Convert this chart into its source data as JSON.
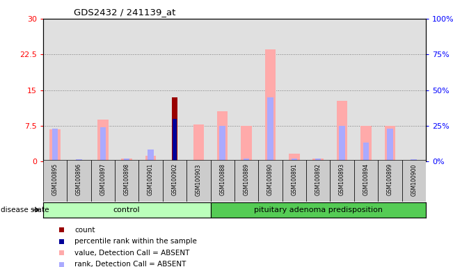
{
  "title": "GDS2432 / 241139_at",
  "samples": [
    "GSM100895",
    "GSM100896",
    "GSM100897",
    "GSM100898",
    "GSM100901",
    "GSM100902",
    "GSM100903",
    "GSM100888",
    "GSM100889",
    "GSM100890",
    "GSM100891",
    "GSM100892",
    "GSM100893",
    "GSM100894",
    "GSM100899",
    "GSM100900"
  ],
  "group_labels": [
    "control",
    "pituitary adenoma predisposition"
  ],
  "group_sizes": [
    7,
    9
  ],
  "count_values": [
    0,
    0,
    0,
    0,
    0,
    13.5,
    0,
    0,
    0,
    0,
    0,
    0,
    0,
    0,
    0,
    0
  ],
  "percentile_values": [
    0,
    0,
    0,
    0,
    0,
    30.0,
    0,
    0,
    0,
    0,
    0,
    0,
    0,
    0,
    0,
    0
  ],
  "value_absent": [
    6.8,
    0,
    8.8,
    0.6,
    1.2,
    0,
    7.8,
    10.5,
    7.5,
    23.5,
    1.6,
    0.7,
    12.8,
    7.5,
    7.5,
    0
  ],
  "rank_absent_pct": [
    23,
    1.5,
    24,
    2.0,
    8.5,
    0,
    0,
    25,
    2.0,
    45,
    2.0,
    2.0,
    25,
    13.5,
    23,
    1.5
  ],
  "ylim_left": [
    0,
    30
  ],
  "ylim_right": [
    0,
    100
  ],
  "yticks_left": [
    0,
    7.5,
    15,
    22.5,
    30
  ],
  "yticks_right": [
    0,
    25,
    50,
    75,
    100
  ],
  "color_count": "#990000",
  "color_percentile": "#000099",
  "color_value_absent": "#ffaaaa",
  "color_rank_absent": "#aaaaff",
  "control_color": "#bbffbb",
  "pituitary_color": "#55cc55",
  "disease_state_label": "disease state"
}
